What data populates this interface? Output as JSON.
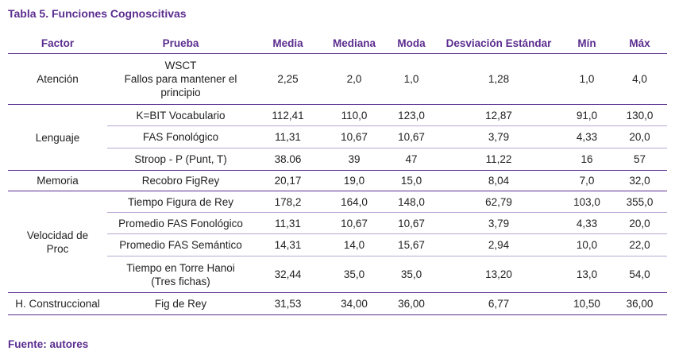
{
  "title": "Tabla 5. Funciones Cognoscitivas",
  "headers": [
    "Factor",
    "Prueba",
    "Media",
    "Mediana",
    "Moda",
    "Desviación Estándar",
    "Mín",
    "Máx"
  ],
  "rows": [
    {
      "factor": "Atención",
      "prueba": [
        "WSCT",
        "Fallos para mantener el",
        "principio"
      ],
      "values": [
        "2,25",
        "2,0",
        "1,0",
        "1,28",
        "1,0",
        "4,0"
      ]
    },
    {
      "factor": "Lenguaje",
      "prueba": [
        "K=BIT Vocabulario"
      ],
      "values": [
        "112,41",
        "110,0",
        "123,0",
        "12,87",
        "91,0",
        "130,0"
      ]
    },
    {
      "prueba": [
        "FAS Fonológico"
      ],
      "values": [
        "11,31",
        "10,67",
        "10,67",
        "3,79",
        "4,33",
        "20,0"
      ]
    },
    {
      "prueba": [
        "Stroop - P (Punt, T)"
      ],
      "values": [
        "38.06",
        "39",
        "47",
        "11,22",
        "16",
        "57"
      ]
    },
    {
      "factor": "Memoria",
      "prueba": [
        "Recobro FigRey"
      ],
      "values": [
        "20,17",
        "19,0",
        "15,0",
        "8,04",
        "7,0",
        "32,0"
      ]
    },
    {
      "factor": [
        "Velocidad de",
        "Proc"
      ],
      "prueba": [
        "Tiempo Figura de Rey"
      ],
      "values": [
        "178,2",
        "164,0",
        "148,0",
        "62,79",
        "103,0",
        "355,0"
      ]
    },
    {
      "prueba": [
        "Promedio FAS Fonológico"
      ],
      "values": [
        "11,31",
        "10,67",
        "10,67",
        "3,79",
        "4,33",
        "20,0"
      ]
    },
    {
      "prueba": [
        "Promedio FAS Semántico"
      ],
      "values": [
        "14,31",
        "14,0",
        "15,67",
        "2,94",
        "10,0",
        "22,0"
      ]
    },
    {
      "prueba": [
        "Tiempo en Torre Hanoi",
        "(Tres fichas)"
      ],
      "values": [
        "32,44",
        "35,0",
        "35,0",
        "13,20",
        "13,0",
        "54,0"
      ]
    },
    {
      "factor": "H. Construccional",
      "prueba": [
        "Fig de Rey"
      ],
      "values": [
        "31,53",
        "34,00",
        "36,00",
        "6,77",
        "10,50",
        "36,00"
      ]
    }
  ],
  "source": "Fuente: autores",
  "colors": {
    "accent": "#5b2d8f",
    "divider": "#b9a8d3",
    "text": "#222222"
  }
}
